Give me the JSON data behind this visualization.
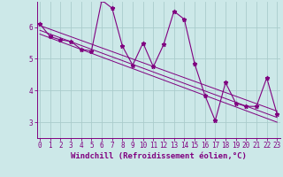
{
  "x": [
    0,
    1,
    2,
    3,
    4,
    5,
    6,
    7,
    8,
    9,
    10,
    11,
    12,
    13,
    14,
    15,
    16,
    17,
    18,
    19,
    20,
    21,
    22,
    23
  ],
  "y": [
    6.1,
    5.7,
    5.6,
    5.55,
    5.3,
    5.25,
    6.85,
    6.6,
    5.4,
    4.8,
    5.5,
    4.75,
    5.45,
    6.5,
    6.25,
    4.85,
    3.85,
    3.05,
    4.25,
    3.6,
    3.5,
    3.5,
    4.4,
    3.25
  ],
  "trend1_x": [
    0,
    23
  ],
  "trend1_y": [
    6.05,
    3.35
  ],
  "trend2_x": [
    0,
    23
  ],
  "trend2_y": [
    5.9,
    3.15
  ],
  "trend3_x": [
    0,
    23
  ],
  "trend3_y": [
    5.78,
    3.0
  ],
  "xlim": [
    -0.3,
    23.3
  ],
  "ylim": [
    2.5,
    6.8
  ],
  "yticks": [
    3,
    4,
    5,
    6
  ],
  "xticks": [
    0,
    1,
    2,
    3,
    4,
    5,
    6,
    7,
    8,
    9,
    10,
    11,
    12,
    13,
    14,
    15,
    16,
    17,
    18,
    19,
    20,
    21,
    22,
    23
  ],
  "xlabel": "Windchill (Refroidissement éolien,°C)",
  "line_color": "#800080",
  "bg_color": "#cce8e8",
  "grid_color": "#aacccc",
  "tick_fontsize": 5.5,
  "label_fontsize": 6.5
}
